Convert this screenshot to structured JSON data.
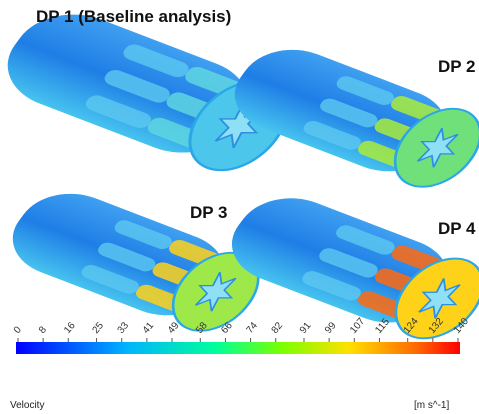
{
  "panels": [
    {
      "label": "DP 1 (Baseline analysis)"
    },
    {
      "label": "DP 2"
    },
    {
      "label": "DP 3"
    },
    {
      "label": "DP 4"
    }
  ],
  "colorbar": {
    "ticks": [
      0,
      8,
      16,
      25,
      33,
      41,
      49,
      58,
      66,
      74,
      82,
      91,
      99,
      107,
      115,
      124,
      132,
      140
    ],
    "quantity": "Velocity",
    "unit": "[m s^-1]"
  }
}
